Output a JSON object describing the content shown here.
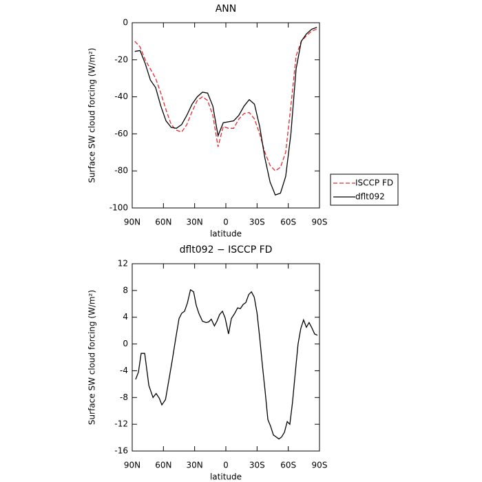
{
  "chart_data": [
    {
      "type": "line",
      "title": "ANN",
      "xlabel": "latitude",
      "ylabel": "Surface SW cloud forcing (W/m²)",
      "x": [
        87.5,
        82.5,
        77.5,
        72.5,
        67.5,
        62.5,
        57.5,
        52.5,
        47.5,
        42.5,
        37.5,
        32.5,
        27.5,
        22.5,
        17.5,
        12.5,
        7.5,
        2.5,
        -2.5,
        -7.5,
        -12.5,
        -17.5,
        -22.5,
        -27.5,
        -32.5,
        -37.5,
        -42.5,
        -47.5,
        -52.5,
        -57.5,
        -62.5,
        -67.5,
        -72.5,
        -77.5,
        -82.5,
        -87.5
      ],
      "series": [
        {
          "name": "ISCCP FD",
          "color": "#e8262a",
          "dashed": true,
          "values": [
            -10,
            -13,
            -20,
            -25,
            -30,
            -38,
            -47,
            -55,
            -58,
            -59,
            -55,
            -48,
            -42,
            -40,
            -42,
            -50,
            -67,
            -56,
            -57,
            -57,
            -52,
            -49,
            -48.5,
            -52,
            -60,
            -70,
            -77,
            -80,
            -78,
            -70,
            -45,
            -18,
            -10,
            -7,
            -4.5,
            -3.5
          ]
        },
        {
          "name": "dflt092",
          "color": "#000000",
          "dashed": false,
          "values": [
            -15.5,
            -15,
            -22,
            -31,
            -35,
            -45,
            -53,
            -56.5,
            -57,
            -55,
            -50,
            -44,
            -40,
            -37.5,
            -38,
            -45,
            -61,
            -54,
            -53.5,
            -53,
            -50,
            -45,
            -41.5,
            -44,
            -56,
            -73,
            -86,
            -93,
            -92,
            -83,
            -60,
            -25,
            -10,
            -6,
            -3.5,
            -2.5
          ]
        }
      ],
      "xlim": [
        90,
        -90
      ],
      "xticks": [
        {
          "value": 90,
          "label": "90N"
        },
        {
          "value": 60,
          "label": "60N"
        },
        {
          "value": 30,
          "label": "30N"
        },
        0,
        {
          "value": -30,
          "label": "30S"
        },
        {
          "value": -60,
          "label": "60S"
        },
        {
          "value": -90,
          "label": "90S"
        }
      ],
      "ylim": [
        -100,
        0
      ],
      "yticks": [
        -100,
        -80,
        -60,
        -40,
        -20,
        0
      ],
      "legend": "right"
    },
    {
      "type": "line",
      "title": "dflt092 − ISCCP FD",
      "xlabel": "latitude",
      "ylabel": "Surface SW cloud forcing (W/m²)",
      "x": [
        86.7,
        84,
        81.4,
        78,
        74,
        70,
        67,
        64,
        61.5,
        58,
        55,
        51.6,
        48,
        45,
        42.4,
        39.7,
        37,
        34,
        31,
        28.5,
        26,
        22.5,
        19,
        16.5,
        14,
        11,
        8.6,
        6,
        3.3,
        0.7,
        -2.6,
        -5.3,
        -8.6,
        -11.3,
        -14,
        -16.6,
        -19.2,
        -22,
        -24.6,
        -27.3,
        -30,
        -32.5,
        -35,
        -37.7,
        -40.4,
        -43,
        -45.7,
        -48.4,
        -51,
        -53.6,
        -56.3,
        -59,
        -61.5,
        -64,
        -66.8,
        -69.4,
        -72,
        -74.7,
        -77.4,
        -80,
        -82.7,
        -85.3,
        -88
      ],
      "values": [
        -5.3,
        -4.2,
        -1.4,
        -1.4,
        -6.2,
        -8,
        -7.4,
        -8.1,
        -9.1,
        -8.3,
        -5.6,
        -2.5,
        1,
        3.8,
        4.6,
        4.9,
        6.1,
        8.1,
        7.8,
        5.8,
        4.6,
        3.4,
        3.2,
        3.3,
        3.7,
        2.7,
        3.4,
        4.4,
        4.9,
        3.9,
        1.5,
        3.8,
        4.6,
        5.4,
        5.3,
        5.9,
        6.2,
        7.4,
        7.8,
        7,
        4.6,
        1,
        -3,
        -7,
        -11.3,
        -12.3,
        -13.6,
        -13.9,
        -14.2,
        -13.9,
        -13.2,
        -11.6,
        -12,
        -8.8,
        -4.2,
        0,
        2.3,
        3.6,
        2.5,
        3.2,
        2.4,
        1.5,
        1.3
      ],
      "color": "#000000",
      "xlim": [
        90,
        -90
      ],
      "xticks": [
        {
          "value": 90,
          "label": "90N"
        },
        {
          "value": 60,
          "label": "60N"
        },
        {
          "value": 30,
          "label": "30N"
        },
        0,
        {
          "value": -30,
          "label": "30S"
        },
        {
          "value": -60,
          "label": "60S"
        },
        {
          "value": -90,
          "label": "90S"
        }
      ],
      "ylim": [
        -16,
        12
      ],
      "yticks": [
        -16,
        -12,
        -8,
        -4,
        0,
        4,
        8,
        12
      ]
    }
  ]
}
